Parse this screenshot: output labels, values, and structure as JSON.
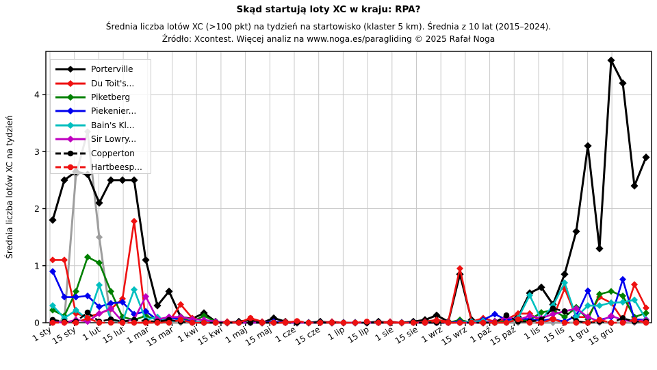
{
  "header": {
    "title": "Skąd startują loty XC w kraju: RPA?",
    "subtitle": "Średnia liczba lotów XC (>100 pkt) na tydzień na startowisko (klaster 5 km). Średnia z 10 lat (2015–2024).",
    "source": "Źródło: Xcontest. Więcej analiz na www.noga.es/paragliding © 2025 Rafał Noga"
  },
  "axes": {
    "y_label": "Średnia liczba lotów XC na tydzień",
    "y_ticks": [
      0,
      1,
      2,
      3,
      4
    ],
    "x_tick_labels": [
      "1 sty",
      "15 sty",
      "1 lut",
      "15 lut",
      "1 mar",
      "15 mar",
      "1 kwi",
      "15 kwi",
      "1 maj",
      "15 maj",
      "1 cze",
      "15 cze",
      "1 lip",
      "15 lip",
      "1 sie",
      "15 sie",
      "1 wrz",
      "15 wrz",
      "1 paź",
      "15 paź",
      "1 lis",
      "15 lis",
      "1 gru",
      "15 gru"
    ]
  },
  "colors": {
    "grid": "#c8c8c8",
    "axis": "#000000",
    "background": "#ffffff"
  },
  "chart_data": {
    "type": "line",
    "x_unit": "week_of_year",
    "n_weeks": 52,
    "ylim": [
      0,
      4.75
    ],
    "grid": true,
    "legend_position": "upper left",
    "series": [
      {
        "name": "unnamed-gray",
        "label": null,
        "color": "#9e9e9e",
        "dashed": false,
        "marker": "diamond",
        "in_legend": false,
        "values": [
          0,
          0.05,
          2.6,
          3.35,
          1.5,
          0.05,
          0,
          0,
          0,
          0,
          0,
          0,
          0,
          0,
          0,
          0,
          0,
          0,
          0,
          0,
          0,
          0,
          0,
          0,
          0,
          0,
          0,
          0,
          0,
          0,
          0,
          0,
          0,
          0,
          0,
          0,
          0,
          0,
          0,
          0,
          0,
          0,
          0,
          0,
          0,
          0,
          0,
          0,
          0,
          0,
          0,
          0
        ]
      },
      {
        "name": "porterville",
        "label": "Porterville",
        "color": "#000000",
        "dashed": false,
        "marker": "diamond",
        "in_legend": true,
        "values": [
          1.8,
          2.5,
          2.65,
          2.6,
          2.1,
          2.5,
          2.5,
          2.5,
          1.1,
          0.3,
          0.55,
          0.1,
          0.07,
          0.17,
          0.02,
          0,
          0.02,
          0.05,
          0,
          0.08,
          0.02,
          0,
          0,
          0.02,
          0,
          0,
          0,
          0,
          0.02,
          0,
          0,
          0.02,
          0.05,
          0.13,
          0.02,
          0.85,
          0.05,
          0,
          0.02,
          0.02,
          0.1,
          0.52,
          0.62,
          0.32,
          0.85,
          1.6,
          3.1,
          1.3,
          4.6,
          4.2,
          2.4,
          2.9
        ]
      },
      {
        "name": "du-toits",
        "label": "Du Toit's...",
        "color": "#ee1111",
        "dashed": false,
        "marker": "diamond",
        "in_legend": true,
        "values": [
          1.1,
          1.1,
          0.16,
          0.1,
          0.16,
          0.24,
          0.42,
          1.78,
          0.04,
          0,
          0.02,
          0.32,
          0.08,
          0.04,
          0,
          0.02,
          0,
          0.08,
          0.02,
          0,
          0.02,
          0,
          0,
          0,
          0.02,
          0,
          0,
          0,
          0,
          0.02,
          0,
          0,
          0.02,
          0.05,
          0.02,
          0.95,
          0.02,
          0.08,
          0.02,
          0.06,
          0.16,
          0.16,
          0.02,
          0.08,
          0.6,
          0.1,
          0.1,
          0.45,
          0.35,
          0.05,
          0.67,
          0.26
        ]
      },
      {
        "name": "piketberg",
        "label": "Piketberg",
        "color": "#008000",
        "dashed": false,
        "marker": "diamond",
        "in_legend": true,
        "values": [
          0.22,
          0.12,
          0.55,
          1.15,
          1.05,
          0.55,
          0.1,
          0.05,
          0.12,
          0.05,
          0.08,
          0.08,
          0.02,
          0.12,
          0.02,
          0,
          0,
          0,
          0,
          0,
          0,
          0,
          0,
          0,
          0,
          0,
          0,
          0,
          0,
          0,
          0,
          0,
          0,
          0.02,
          0,
          0.05,
          0,
          0.02,
          0,
          0.02,
          0.05,
          0.05,
          0.18,
          0.22,
          0.1,
          0.27,
          0.06,
          0.5,
          0.55,
          0.47,
          0.1,
          0.17
        ]
      },
      {
        "name": "piekenier",
        "label": "Piekenier...",
        "color": "#0000ee",
        "dashed": false,
        "marker": "diamond",
        "in_legend": true,
        "values": [
          0.9,
          0.45,
          0.45,
          0.47,
          0.28,
          0.34,
          0.36,
          0.15,
          0.2,
          0.05,
          0.1,
          0.05,
          0.02,
          0,
          0,
          0,
          0,
          0,
          0,
          0.02,
          0,
          0,
          0,
          0,
          0,
          0,
          0,
          0,
          0,
          0,
          0,
          0,
          0,
          0,
          0,
          0.02,
          0,
          0.05,
          0.15,
          0.05,
          0.08,
          0.06,
          0.04,
          0.06,
          0.02,
          0.12,
          0.56,
          0.05,
          0.1,
          0.76,
          0.06,
          0.05
        ]
      },
      {
        "name": "bains-kloof",
        "label": "Bain's Kl...",
        "color": "#00bfbf",
        "dashed": false,
        "marker": "diamond",
        "in_legend": true,
        "values": [
          0.3,
          0.08,
          0.22,
          0.06,
          0.66,
          0.05,
          0.02,
          0.58,
          0.05,
          0.1,
          0.02,
          0.05,
          0,
          0.02,
          0,
          0,
          0,
          0,
          0,
          0,
          0,
          0,
          0,
          0,
          0,
          0,
          0,
          0,
          0,
          0,
          0,
          0,
          0,
          0,
          0,
          0,
          0.02,
          0.03,
          0,
          0,
          0.08,
          0.48,
          0.05,
          0.3,
          0.7,
          0.1,
          0.3,
          0.3,
          0.35,
          0.36,
          0.4,
          0.06
        ]
      },
      {
        "name": "sir-lowry",
        "label": "Sir Lowry...",
        "color": "#bf00bf",
        "dashed": false,
        "marker": "diamond",
        "in_legend": true,
        "values": [
          0.02,
          0,
          0.05,
          0.02,
          0.16,
          0.25,
          0.02,
          0.06,
          0.46,
          0.06,
          0.1,
          0.1,
          0.06,
          0.05,
          0.02,
          0,
          0,
          0,
          0,
          0,
          0,
          0,
          0,
          0,
          0,
          0,
          0,
          0,
          0,
          0,
          0,
          0,
          0,
          0,
          0,
          0,
          0,
          0,
          0.02,
          0.1,
          0.05,
          0.12,
          0.08,
          0.15,
          0.2,
          0.25,
          0.1,
          0.02,
          0.12,
          0.05,
          0.02,
          0.05
        ]
      },
      {
        "name": "copperton",
        "label": "Copperton",
        "color": "#000000",
        "dashed": true,
        "marker": "circle",
        "in_legend": true,
        "values": [
          0.05,
          0.02,
          0.02,
          0.18,
          0.02,
          0.06,
          0.02,
          0.05,
          0.03,
          0.02,
          0.05,
          0.02,
          0,
          0,
          0,
          0,
          0,
          0,
          0,
          0,
          0,
          0,
          0,
          0,
          0,
          0,
          0,
          0,
          0,
          0,
          0,
          0,
          0,
          0,
          0,
          0,
          0,
          0,
          0,
          0.13,
          0.02,
          0.02,
          0.05,
          0.25,
          0.2,
          0.03,
          0,
          0.02,
          0,
          0.08,
          0.02,
          0.02
        ]
      },
      {
        "name": "hartbeespoort",
        "label": "Hartbeesp...",
        "color": "#ee1111",
        "dashed": true,
        "marker": "circle",
        "in_legend": true,
        "values": [
          0,
          0,
          0,
          0.08,
          0,
          0,
          0,
          0,
          0,
          0,
          0,
          0.05,
          0,
          0,
          0,
          0,
          0,
          0.08,
          0,
          0,
          0,
          0.03,
          0,
          0,
          0,
          0,
          0,
          0.02,
          0,
          0,
          0,
          0,
          0,
          0.03,
          0,
          0,
          0,
          0,
          0,
          0,
          0.06,
          0,
          0,
          0.06,
          0,
          0,
          0,
          0.05,
          0,
          0,
          0.05,
          0
        ]
      }
    ]
  }
}
